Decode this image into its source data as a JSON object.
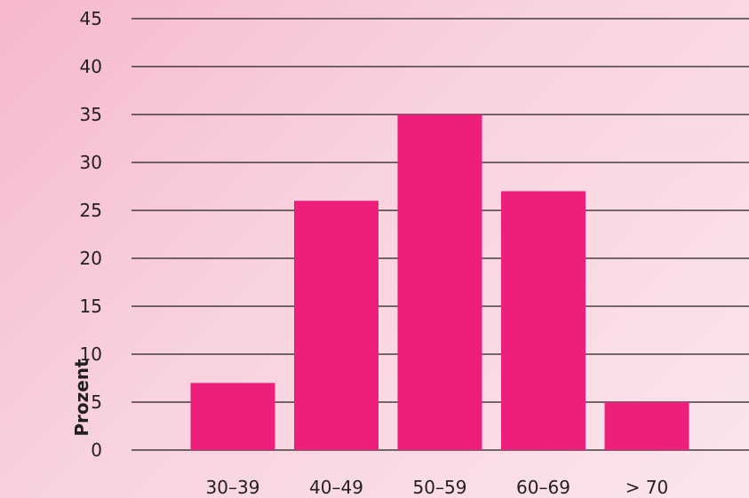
{
  "chart_data": {
    "type": "bar",
    "categories": [
      "30–39",
      "40–49",
      "50–59",
      "60–69",
      "> 70"
    ],
    "values": [
      7,
      26,
      35,
      27,
      5
    ],
    "ylabel": "Prozent",
    "xlabel": "",
    "ylim": [
      0,
      45
    ],
    "yticks": [
      0,
      5,
      10,
      15,
      20,
      25,
      30,
      35,
      40,
      45
    ],
    "grid": true,
    "bar_color": "#ed1f7a",
    "grid_color": "#231f20",
    "text_color": "#231f20"
  }
}
